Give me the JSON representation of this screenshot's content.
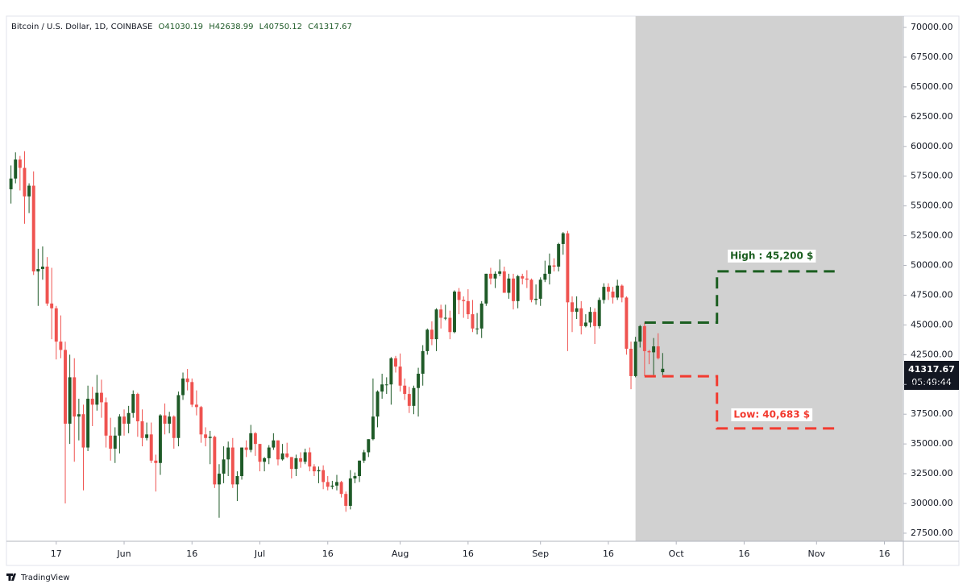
{
  "chart_data": {
    "type": "candlestick",
    "symbol": "Bitcoin / U.S. Dollar, 1D, COINBASE",
    "ohlc_labels": [
      "O",
      "H",
      "L",
      "C"
    ],
    "countdown": "05:49:44",
    "brand": "TradingView",
    "up_color": "#1e5a27",
    "down_color": "#ef5350",
    "x": [
      "05-07",
      "05-08",
      "05-09",
      "05-10",
      "05-11",
      "05-12",
      "05-13",
      "05-14",
      "05-15",
      "05-16",
      "05-17",
      "05-18",
      "05-19",
      "05-20",
      "05-21",
      "05-22",
      "05-23",
      "05-24",
      "05-25",
      "05-26",
      "05-27",
      "05-28",
      "05-29",
      "05-30",
      "05-31",
      "06-01",
      "06-02",
      "06-03",
      "06-04",
      "06-05",
      "06-06",
      "06-07",
      "06-08",
      "06-09",
      "06-10",
      "06-11",
      "06-12",
      "06-13",
      "06-14",
      "06-15",
      "06-16",
      "06-17",
      "06-18",
      "06-19",
      "06-20",
      "06-21",
      "06-22",
      "06-23",
      "06-24",
      "06-25",
      "06-26",
      "06-27",
      "06-28",
      "06-29",
      "06-30",
      "07-01",
      "07-02",
      "07-03",
      "07-04",
      "07-05",
      "07-06",
      "07-07",
      "07-08",
      "07-09",
      "07-10",
      "07-11",
      "07-12",
      "07-13",
      "07-14",
      "07-15",
      "07-16",
      "07-17",
      "07-18",
      "07-19",
      "07-20",
      "07-21",
      "07-22",
      "07-23",
      "07-24",
      "07-25",
      "07-26",
      "07-27",
      "07-28",
      "07-29",
      "07-30",
      "07-31",
      "08-01",
      "08-02",
      "08-03",
      "08-04",
      "08-05",
      "08-06",
      "08-07",
      "08-08",
      "08-09",
      "08-10",
      "08-11",
      "08-12",
      "08-13",
      "08-14",
      "08-15",
      "08-16",
      "08-17",
      "08-18",
      "08-19",
      "08-20",
      "08-21",
      "08-22",
      "08-23",
      "08-24",
      "08-25",
      "08-26",
      "08-27",
      "08-28",
      "08-29",
      "08-30",
      "08-31",
      "09-01",
      "09-02",
      "09-03",
      "09-04",
      "09-05",
      "09-06",
      "09-07",
      "09-08",
      "09-09",
      "09-10",
      "09-11",
      "09-12",
      "09-13",
      "09-14",
      "09-15",
      "09-16",
      "09-17",
      "09-18",
      "09-19",
      "09-20",
      "09-21",
      "09-22",
      "09-23",
      "09-24",
      "09-25",
      "09-26",
      "09-27",
      "09-28"
    ],
    "open": [
      56400,
      57300,
      58900,
      58200,
      55800,
      56700,
      49500,
      49700,
      49900,
      46800,
      46400,
      43600,
      42900,
      36700,
      40600,
      37300,
      37500,
      34700,
      38800,
      38300,
      39300,
      38500,
      35700,
      34600,
      35700,
      37300,
      36700,
      37600,
      39200,
      36900,
      35500,
      35800,
      33600,
      33400,
      37400,
      36700,
      37300,
      35500,
      39100,
      40500,
      40200,
      38300,
      38100,
      35800,
      35500,
      35600,
      31600,
      32500,
      33700,
      34700,
      31600,
      32300,
      34700,
      34500,
      35900,
      35000,
      33500,
      33800,
      34700,
      35300,
      33700,
      34200,
      33900,
      32900,
      33800,
      33500,
      34300,
      33100,
      32700,
      32800,
      31800,
      31400,
      31500,
      31800,
      30800,
      29800,
      32100,
      32300,
      33600,
      34300,
      35400,
      37300,
      39400,
      40000,
      40000,
      42200,
      41500,
      39900,
      39200,
      38200,
      39700,
      40900,
      42800,
      44600,
      43800,
      46300,
      45600,
      45600,
      44400,
      47800,
      47100,
      47000,
      45900,
      44700,
      44700,
      46800,
      49300,
      48900,
      49300,
      49500,
      47700,
      48900,
      47000,
      49100,
      48900,
      48800,
      47100,
      47200,
      48800,
      49300,
      50000,
      49900,
      51800,
      52700,
      46900,
      46100,
      46400,
      44900,
      45200,
      46100,
      44900,
      47100,
      48200,
      47800,
      47300,
      48300,
      47300,
      43000,
      40700,
      43600,
      44900,
      42800,
      42700,
      43200,
      41030.19
    ],
    "high": [
      58400,
      59500,
      59200,
      59600,
      56900,
      57900,
      51400,
      51600,
      50700,
      49800,
      46600,
      45800,
      43600,
      42500,
      42200,
      38800,
      38300,
      39900,
      39800,
      40800,
      40400,
      38900,
      37200,
      36400,
      37500,
      37900,
      38200,
      39500,
      39300,
      37900,
      36800,
      36800,
      34100,
      37500,
      38400,
      37700,
      37400,
      39400,
      41000,
      41300,
      40500,
      39500,
      38200,
      36400,
      36100,
      35700,
      33300,
      34800,
      35200,
      35500,
      32700,
      34700,
      35300,
      36600,
      36000,
      35000,
      33900,
      34900,
      35900,
      35300,
      35000,
      35100,
      33900,
      34100,
      34300,
      34600,
      34700,
      33300,
      33100,
      33200,
      32300,
      31900,
      32400,
      31900,
      31000,
      32800,
      32600,
      33600,
      34500,
      35400,
      40500,
      39500,
      40900,
      40600,
      42300,
      42400,
      42600,
      40500,
      39800,
      39900,
      41400,
      43300,
      44700,
      45300,
      46400,
      46700,
      46700,
      46200,
      47900,
      48100,
      47400,
      48000,
      47100,
      46000,
      47000,
      49300,
      49800,
      49500,
      50500,
      49900,
      49300,
      49300,
      49200,
      49300,
      49600,
      48900,
      48400,
      49000,
      50400,
      51000,
      50600,
      51900,
      52800,
      52900,
      47400,
      47400,
      47000,
      45900,
      46500,
      46400,
      47300,
      48500,
      48500,
      48200,
      48800,
      48400,
      47400,
      43600,
      44000,
      45000,
      45200,
      42900,
      43900,
      44300,
      42638.99
    ],
    "low": [
      55200,
      56900,
      56300,
      53500,
      54400,
      49200,
      46600,
      48800,
      46600,
      43800,
      42100,
      42200,
      30000,
      35000,
      33500,
      35300,
      31100,
      34400,
      36500,
      37800,
      37200,
      34700,
      33600,
      33400,
      34200,
      35700,
      35900,
      37200,
      35600,
      34800,
      35300,
      33400,
      31000,
      32400,
      35800,
      35900,
      34600,
      34800,
      38700,
      39500,
      38100,
      37400,
      35100,
      34800,
      33300,
      31300,
      28800,
      31700,
      32300,
      31300,
      30200,
      32000,
      33900,
      34300,
      34000,
      32700,
      32700,
      33300,
      34500,
      33200,
      33600,
      33800,
      32100,
      32300,
      33000,
      33300,
      32700,
      32300,
      31700,
      31200,
      31100,
      31200,
      31100,
      30500,
      29300,
      29500,
      31700,
      31800,
      33400,
      33900,
      35300,
      36400,
      38800,
      39200,
      38300,
      41000,
      39400,
      38700,
      37600,
      37500,
      37300,
      39900,
      42500,
      43300,
      42800,
      44700,
      45400,
      43800,
      44300,
      45900,
      45600,
      45500,
      44400,
      44200,
      43900,
      46600,
      48400,
      48100,
      49100,
      47700,
      47200,
      46300,
      46400,
      48400,
      48100,
      46900,
      46700,
      46600,
      48600,
      48400,
      49500,
      49500,
      50900,
      42800,
      44400,
      45500,
      44200,
      44800,
      44800,
      43400,
      44700,
      46800,
      47100,
      46800,
      47100,
      46900,
      42500,
      39600,
      40600,
      43100,
      40700,
      41700,
      40800,
      42100,
      40750.12
    ],
    "close": [
      57300,
      58900,
      58200,
      55800,
      56700,
      49500,
      49700,
      49900,
      46800,
      46400,
      43600,
      42900,
      36700,
      40600,
      37300,
      37500,
      34700,
      38800,
      38300,
      39300,
      38500,
      35700,
      34600,
      35700,
      37300,
      36700,
      37600,
      39200,
      36900,
      35500,
      35800,
      33600,
      33400,
      37400,
      36700,
      37300,
      35500,
      39100,
      40500,
      40200,
      38300,
      38100,
      35800,
      35500,
      35600,
      31600,
      32500,
      33700,
      34700,
      31600,
      32300,
      34700,
      34500,
      35900,
      35000,
      33500,
      33800,
      34700,
      35300,
      33700,
      34200,
      33900,
      32900,
      33800,
      33500,
      34300,
      33100,
      32700,
      32800,
      31800,
      31400,
      31500,
      31800,
      30800,
      29800,
      32100,
      32300,
      33600,
      34300,
      35400,
      37300,
      39400,
      40000,
      40000,
      42200,
      41500,
      39900,
      39200,
      38200,
      39700,
      40900,
      42800,
      44600,
      43800,
      46300,
      45600,
      45600,
      44400,
      47800,
      47100,
      47000,
      45900,
      44700,
      44700,
      46800,
      49300,
      48900,
      49300,
      49500,
      47700,
      48900,
      47000,
      49100,
      48900,
      48800,
      47100,
      47200,
      48800,
      49300,
      50000,
      49900,
      51800,
      52700,
      46900,
      46100,
      46400,
      44900,
      45200,
      46100,
      44900,
      47100,
      48200,
      47800,
      47300,
      48300,
      47300,
      43000,
      40700,
      43600,
      44900,
      42800,
      42700,
      43200,
      42200,
      41317.67
    ],
    "xlim": [
      "05-06",
      "11-20"
    ],
    "ylim": [
      26820,
      70950
    ],
    "yticks": [
      {
        "value": 70000,
        "label": "70000.00"
      },
      {
        "value": 67500,
        "label": "67500.00"
      },
      {
        "value": 65000,
        "label": "65000.00"
      },
      {
        "value": 62500,
        "label": "62500.00"
      },
      {
        "value": 60000,
        "label": "60000.00"
      },
      {
        "value": 57500,
        "label": "57500.00"
      },
      {
        "value": 55000,
        "label": "55000.00"
      },
      {
        "value": 52500,
        "label": "52500.00"
      },
      {
        "value": 50000,
        "label": "50000.00"
      },
      {
        "value": 47500,
        "label": "47500.00"
      },
      {
        "value": 45000,
        "label": "45000.00"
      },
      {
        "value": 42500,
        "label": "42500.00"
      },
      {
        "value": 40000,
        "label": "40000.00"
      },
      {
        "value": 37500,
        "label": "37500.00"
      },
      {
        "value": 35000,
        "label": "35000.00"
      },
      {
        "value": 32500,
        "label": "32500.00"
      },
      {
        "value": 30000,
        "label": "30000.00"
      },
      {
        "value": 27500,
        "label": "27500.00"
      }
    ],
    "xticks": [
      {
        "value": "05-17",
        "label": "17"
      },
      {
        "value": "06-01",
        "label": "Jun"
      },
      {
        "value": "06-16",
        "label": "16"
      },
      {
        "value": "07-01",
        "label": "Jul"
      },
      {
        "value": "07-16",
        "label": "16"
      },
      {
        "value": "08-01",
        "label": "Aug"
      },
      {
        "value": "08-16",
        "label": "16"
      },
      {
        "value": "09-01",
        "label": "Sep"
      },
      {
        "value": "09-16",
        "label": "16"
      },
      {
        "value": "10-01",
        "label": "Oct"
      },
      {
        "value": "10-16",
        "label": "16"
      },
      {
        "value": "11-01",
        "label": "Nov"
      },
      {
        "value": "11-16",
        "label": "16"
      }
    ],
    "highlight": {
      "from": "09-22",
      "color": "#d1d1d1"
    },
    "annotations": [
      {
        "label": "High : 45,200 $",
        "color": "#1b5e20",
        "x": [
          "09-24",
          "10-10",
          "10-10",
          "11-05"
        ],
        "values": [
          45200,
          45200,
          49500,
          49500
        ]
      },
      {
        "label": "Low: 40,683 $",
        "color": "#f23b30",
        "x": [
          "09-24",
          "10-10",
          "10-10",
          "11-05"
        ],
        "values": [
          40683,
          40683,
          36300,
          36300
        ]
      }
    ]
  }
}
